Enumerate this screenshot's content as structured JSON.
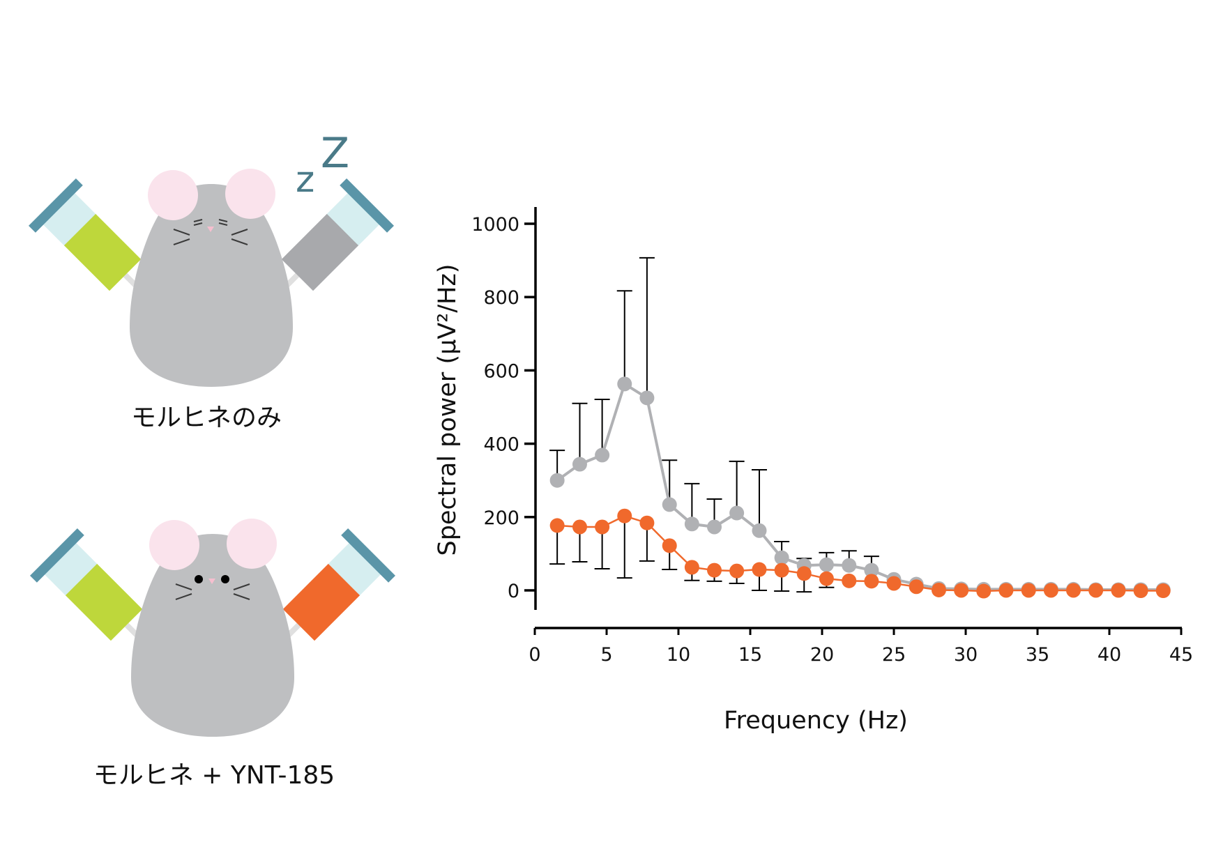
{
  "illustrations": [
    {
      "caption": "モルヒネのみ",
      "state": "asleep",
      "sleep_mark": {
        "small": "z",
        "large": "Z"
      },
      "syringe_left_color": "#BED73B",
      "syringe_right_color": "#A8A9AC"
    },
    {
      "caption": "モルヒネ + YNT-185",
      "state": "awake",
      "syringe_left_color": "#BED73B",
      "syringe_right_color": "#F0692C"
    }
  ],
  "colors": {
    "mouse_body": "#BEBFC1",
    "mouse_ear": "#FAE3EC",
    "mouse_nose": "#F6BFCF",
    "syringe_cap": "#5A95A8",
    "syringe_barrel": "#D6EEF0",
    "needle": "#E0E0E0",
    "gray_series": "#B0B1B4",
    "orange_series": "#F0692C",
    "zz": "#4A7A88"
  },
  "chart_data": {
    "type": "line",
    "title": "",
    "xlabel": "Frequency (Hz)",
    "ylabel": "Spectral power (μV²/Hz)",
    "xlim": [
      0,
      45
    ],
    "ylim": [
      0,
      1000
    ],
    "xticks": [
      "0",
      "5",
      "10",
      "15",
      "20",
      "25",
      "30",
      "35",
      "40",
      "45"
    ],
    "yticks": [
      "0",
      "200",
      "400",
      "600",
      "800",
      "1000"
    ],
    "grid": false,
    "legend": "none",
    "x": [
      1.56,
      3.13,
      4.69,
      6.25,
      7.81,
      9.38,
      10.94,
      12.5,
      14.06,
      15.63,
      17.19,
      18.75,
      20.31,
      21.88,
      23.44,
      25.0,
      26.56,
      28.13,
      29.69,
      31.25,
      32.81,
      34.38,
      35.94,
      37.5,
      39.06,
      40.63,
      42.19,
      43.75
    ],
    "series": [
      {
        "name": "モルヒネのみ",
        "color": "#B0B1B4",
        "values": [
          300,
          344,
          369,
          563,
          525,
          234,
          181,
          173,
          211,
          163,
          89,
          68,
          70,
          68,
          55,
          30,
          17,
          5,
          4,
          3,
          3,
          3,
          3,
          3,
          2,
          2,
          2,
          2
        ],
        "error_upper": [
          382,
          510,
          521,
          817,
          907,
          355,
          291,
          249,
          352,
          329,
          133,
          87,
          103,
          108,
          93,
          null,
          null,
          null,
          null,
          null,
          null,
          null,
          null,
          null,
          null,
          null,
          null,
          null
        ]
      },
      {
        "name": "モルヒネ + YNT-185",
        "color": "#F0692C",
        "values": [
          177,
          173,
          173,
          203,
          184,
          122,
          63,
          55,
          53,
          57,
          55,
          46,
          32,
          26,
          25,
          19,
          10,
          1,
          0,
          -2,
          0,
          0,
          0,
          0,
          0,
          0,
          -1,
          -1
        ],
        "error_lower": [
          72,
          78,
          59,
          34,
          80,
          57,
          27,
          25,
          19,
          0,
          -2,
          -4,
          8,
          null,
          null,
          null,
          null,
          null,
          null,
          null,
          null,
          null,
          null,
          null,
          null,
          null,
          null,
          null
        ]
      }
    ]
  }
}
